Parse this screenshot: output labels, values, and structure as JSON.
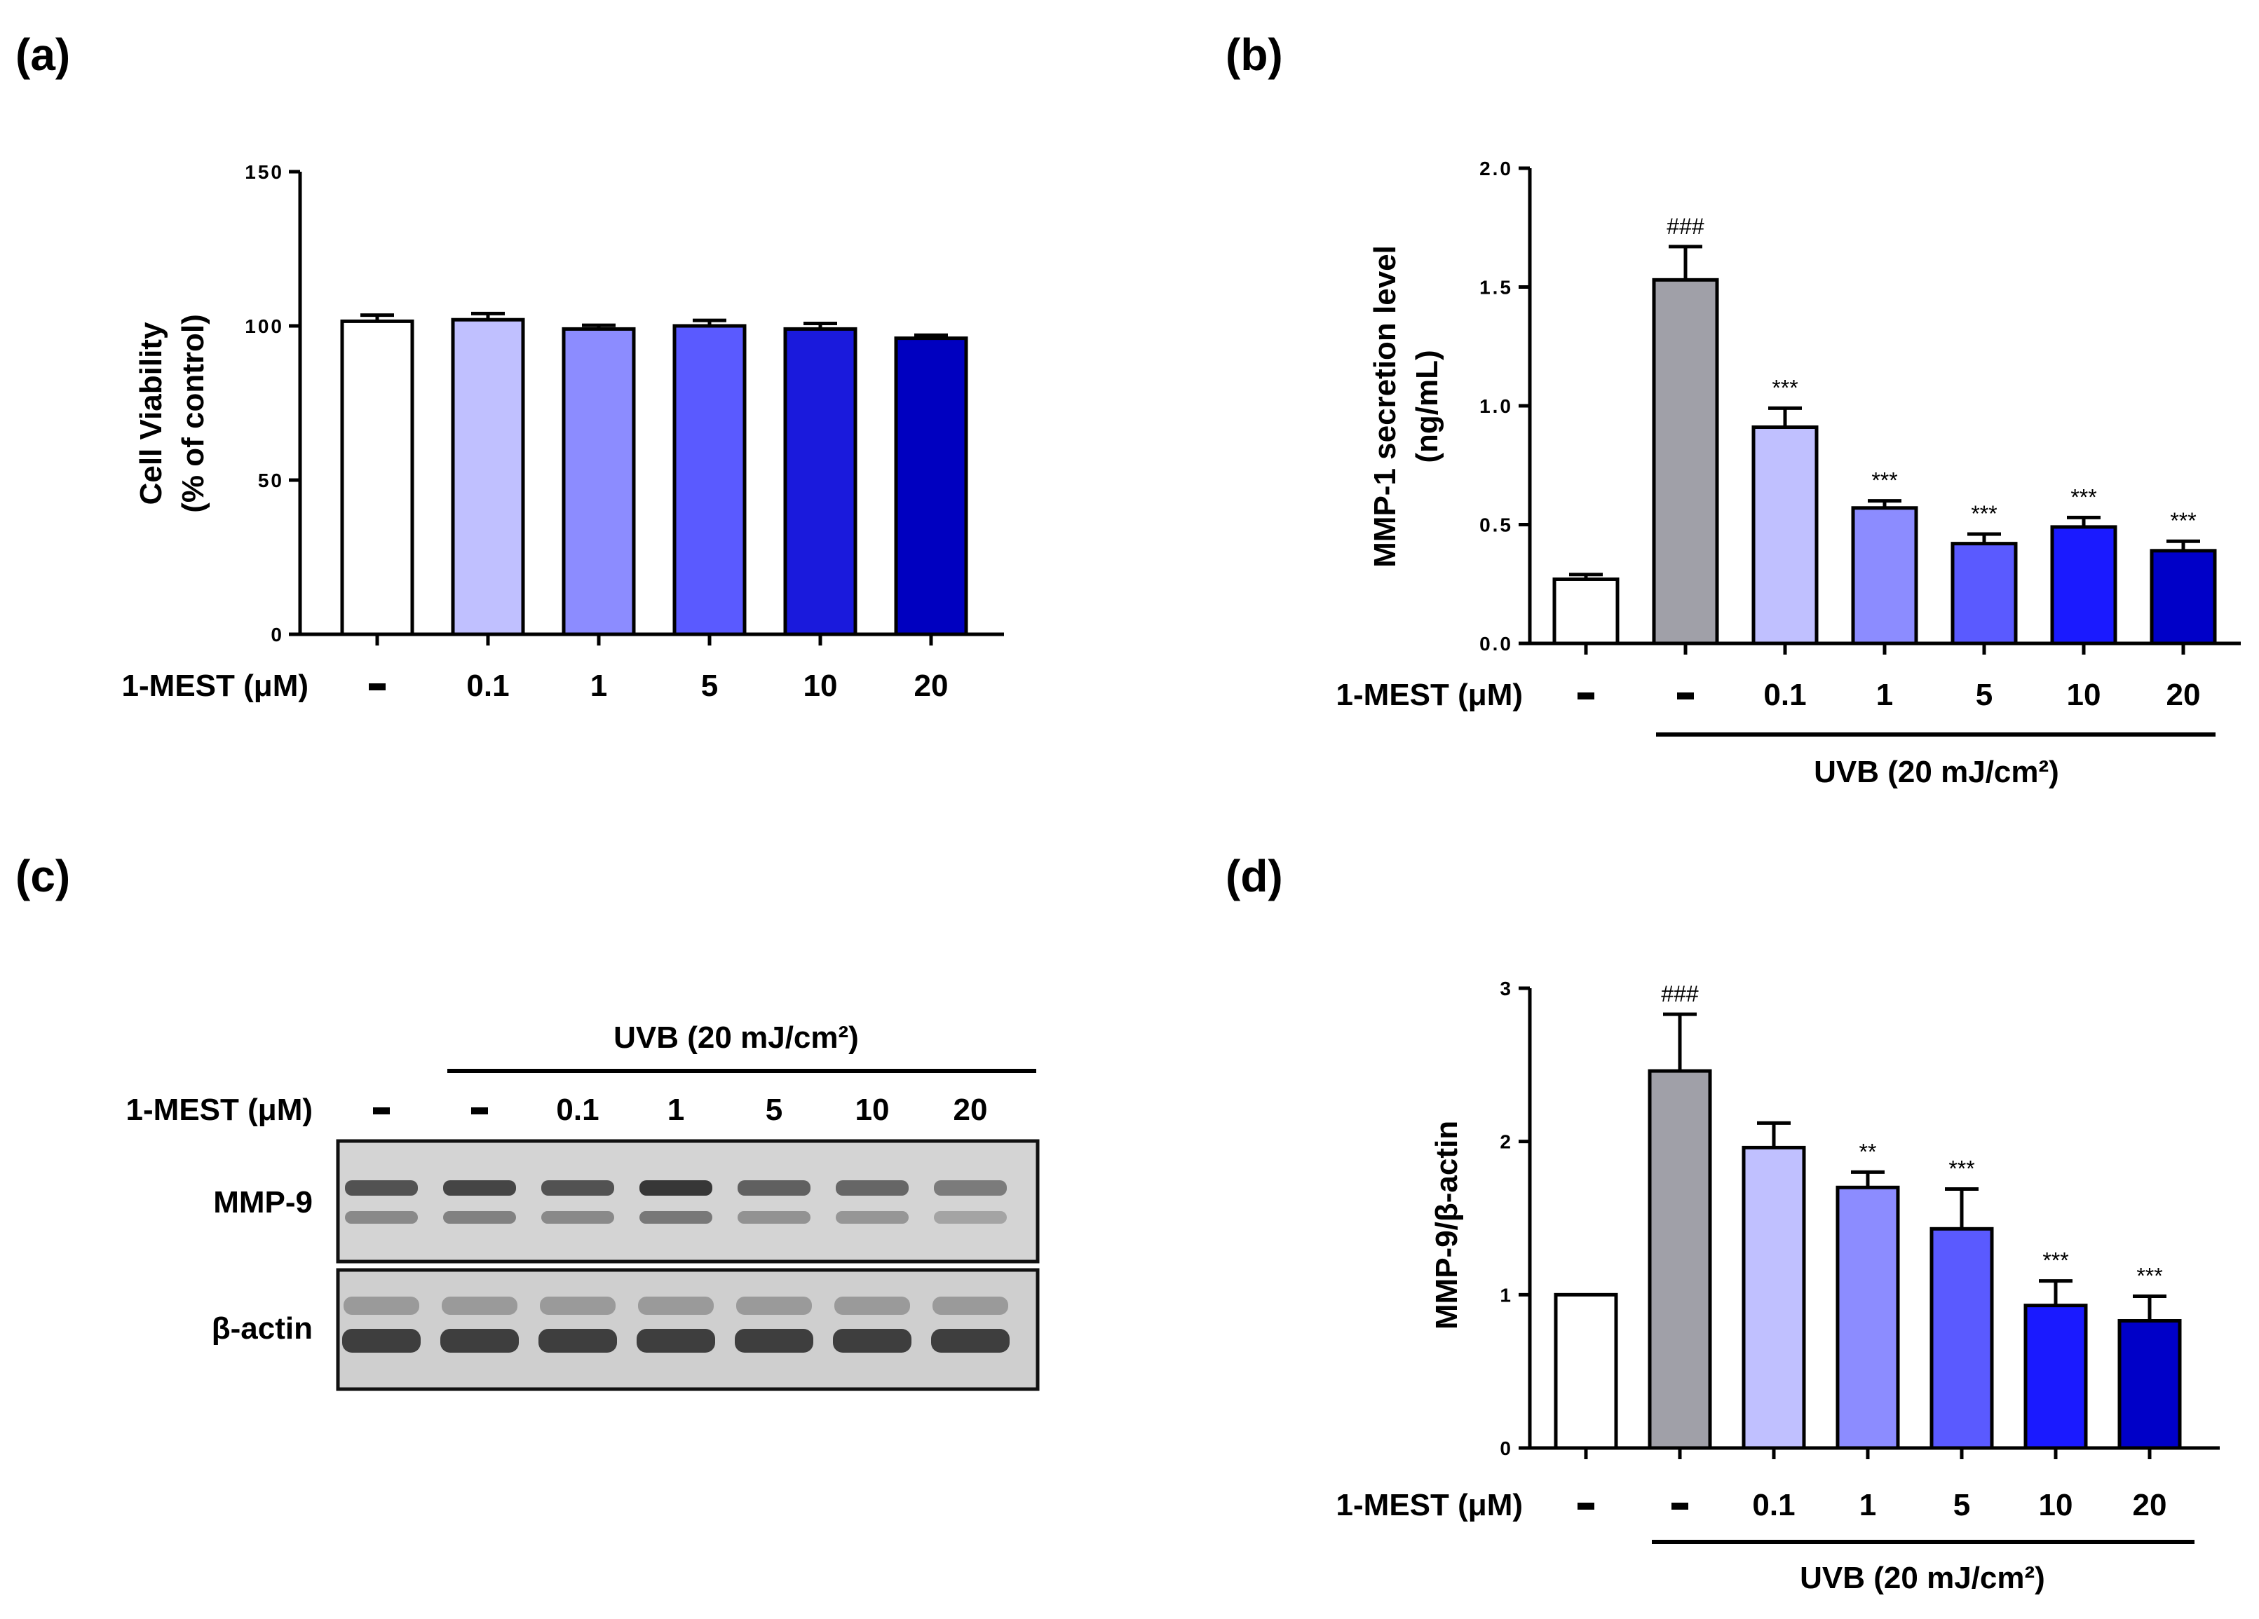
{
  "figure": {
    "panel_labels": [
      "(a)",
      "(b)",
      "(c)",
      "(d)"
    ]
  },
  "chart_data": [
    {
      "panel": "(a)",
      "type": "bar",
      "ylabel_line1": "Cell Viability",
      "ylabel_line2": "(% of control)",
      "ylim": [
        0,
        150
      ],
      "yticks": [
        "0",
        "50",
        "100",
        "150"
      ],
      "row_label": "1-MEST (μM)",
      "categories": [
        "-",
        "0.1",
        "1",
        "5",
        "10",
        "20"
      ],
      "values": [
        101.5,
        102,
        99,
        100,
        99,
        96
      ],
      "errors": [
        2,
        2,
        1.2,
        1.8,
        1.8,
        1
      ],
      "significance": [
        "",
        "",
        "",
        "",
        "",
        ""
      ],
      "colors": [
        "#ffffff",
        "#c0c0ff",
        "#8c8cff",
        "#5a5aff",
        "#1a1adc",
        "#0000c0"
      ],
      "group_label": ""
    },
    {
      "panel": "(b)",
      "type": "bar",
      "ylabel_line1": "MMP-1 secretion level",
      "ylabel_line2": "(ng/mL)",
      "ylim": [
        0,
        2
      ],
      "yticks": [
        "0.0",
        "0.5",
        "1.0",
        "1.5",
        "2.0"
      ],
      "row_label": "1-MEST (μM)",
      "categories": [
        "-",
        "-",
        "0.1",
        "1",
        "5",
        "10",
        "20"
      ],
      "values": [
        0.27,
        1.53,
        0.91,
        0.57,
        0.42,
        0.49,
        0.39
      ],
      "errors": [
        0.02,
        0.14,
        0.08,
        0.03,
        0.04,
        0.04,
        0.04
      ],
      "significance": [
        "",
        "###",
        "***",
        "***",
        "***",
        "***",
        "***"
      ],
      "colors": [
        "#ffffff",
        "#a0a0a8",
        "#c0c0ff",
        "#8c8cff",
        "#5a5aff",
        "#1a1aff",
        "#0000c8"
      ],
      "group_label": "UVB (20 mJ/cm²)"
    },
    {
      "panel": "(d)",
      "type": "bar",
      "ylabel_line1": "MMP-9/β-actin",
      "ylabel_line2": "",
      "ylim": [
        0,
        3
      ],
      "yticks": [
        "0",
        "1",
        "2",
        "3"
      ],
      "row_label": "1-MEST (μM)",
      "categories": [
        "-",
        "-",
        "0.1",
        "1",
        "5",
        "10",
        "20"
      ],
      "values": [
        1.0,
        2.46,
        1.96,
        1.7,
        1.43,
        0.93,
        0.83
      ],
      "errors": [
        0,
        0.37,
        0.16,
        0.1,
        0.26,
        0.16,
        0.16
      ],
      "significance": [
        "",
        "###",
        "",
        "**",
        "***",
        "***",
        "***"
      ],
      "colors": [
        "#ffffff",
        "#a0a0a8",
        "#c0c0ff",
        "#8c8cff",
        "#5a5aff",
        "#1a1aff",
        "#0000c8"
      ],
      "group_label": "UVB (20 mJ/cm²)"
    }
  ],
  "blot": {
    "group_label": "UVB (20 mJ/cm²)",
    "row_label": "1-MEST (μM)",
    "lanes": [
      "-",
      "-",
      "0.1",
      "1",
      "5",
      "10",
      "20"
    ],
    "bands": [
      "MMP-9",
      "β-actin"
    ],
    "mmp9_intensity": [
      0.75,
      0.85,
      0.75,
      0.95,
      0.65,
      0.6,
      0.45
    ]
  }
}
